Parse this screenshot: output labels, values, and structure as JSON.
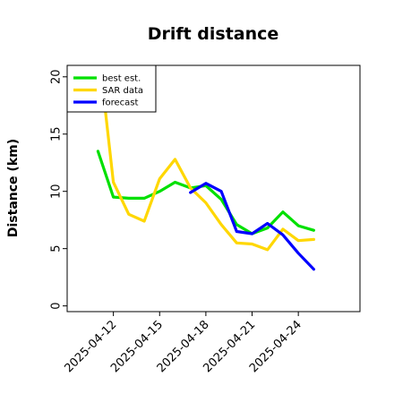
{
  "chart_data": {
    "type": "line",
    "title": "Drift distance",
    "xlabel": "",
    "ylabel": "Distance (km)",
    "ylim": [
      -0.5,
      21
    ],
    "yticks": [
      0,
      5,
      10,
      15,
      20
    ],
    "xlim": [
      "2025-04-09",
      "2025-04-28"
    ],
    "xticks": [
      "2025-04-12",
      "2025-04-15",
      "2025-04-18",
      "2025-04-21",
      "2025-04-24"
    ],
    "grid": false,
    "legend_position": "top-left",
    "series": [
      {
        "name": "best est.",
        "color": "#00e000",
        "points": [
          [
            "2025-04-11",
            13.5
          ],
          [
            "2025-04-12",
            9.5
          ],
          [
            "2025-04-13",
            9.4
          ],
          [
            "2025-04-14",
            9.4
          ],
          [
            "2025-04-15",
            10.0
          ],
          [
            "2025-04-16",
            10.8
          ],
          [
            "2025-04-17",
            10.3
          ],
          [
            "2025-04-18",
            10.5
          ],
          [
            "2025-04-19",
            9.3
          ],
          [
            "2025-04-20",
            7.1
          ],
          [
            "2025-04-21",
            6.3
          ],
          [
            "2025-04-22",
            6.8
          ],
          [
            "2025-04-23",
            8.2
          ],
          [
            "2025-04-24",
            7.0
          ],
          [
            "2025-04-25",
            6.6
          ]
        ]
      },
      {
        "name": "SAR data",
        "color": "#ffd700",
        "points": [
          [
            "2025-04-11.4",
            18.0
          ],
          [
            "2025-04-12",
            10.8
          ],
          [
            "2025-04-13",
            8.0
          ],
          [
            "2025-04-14",
            7.4
          ],
          [
            "2025-04-15",
            11.1
          ],
          [
            "2025-04-16",
            12.8
          ],
          [
            "2025-04-17",
            10.3
          ],
          [
            "2025-04-18",
            9.0
          ],
          [
            "2025-04-19",
            7.1
          ],
          [
            "2025-04-20",
            5.5
          ],
          [
            "2025-04-21",
            5.4
          ],
          [
            "2025-04-22",
            4.9
          ],
          [
            "2025-04-23",
            6.7
          ],
          [
            "2025-04-24",
            5.7
          ],
          [
            "2025-04-25",
            5.8
          ]
        ]
      },
      {
        "name": "forecast",
        "color": "#0000ff",
        "points": [
          [
            "2025-04-17",
            9.9
          ],
          [
            "2025-04-18",
            10.7
          ],
          [
            "2025-04-19",
            10.0
          ],
          [
            "2025-04-20",
            6.5
          ],
          [
            "2025-04-21",
            6.3
          ],
          [
            "2025-04-22",
            7.2
          ],
          [
            "2025-04-23",
            6.2
          ],
          [
            "2025-04-24",
            4.6
          ],
          [
            "2025-04-25",
            3.2
          ]
        ]
      }
    ]
  }
}
